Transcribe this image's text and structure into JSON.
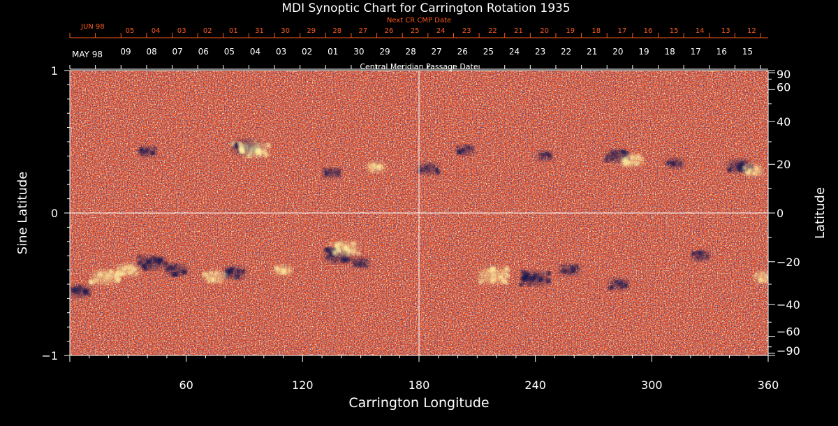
{
  "chart_data": {
    "type": "heatmap",
    "title": "MDI Synoptic Chart for Carrington Rotation 1935",
    "xlabel": "Carrington Longitude",
    "ylabel_left": "Sine Latitude",
    "ylabel_right": "Latitude",
    "xlim": [
      0,
      360
    ],
    "ylim": [
      -1,
      1
    ],
    "x_ticks": [
      "60",
      "120",
      "180",
      "240",
      "300",
      "360"
    ],
    "y_ticks_left": [
      "1",
      "0",
      "−1"
    ],
    "y_ticks_right": [
      "90",
      "60",
      "40",
      "20",
      "0",
      "−20",
      "−40",
      "−60",
      "−90"
    ],
    "center_lines": {
      "longitude": 180,
      "sine_latitude": 0
    },
    "top_axes": {
      "next_cr_label": "Next CR CMP Date",
      "next_cr_month": "JUN 98",
      "next_cr_days": [
        "05",
        "04",
        "03",
        "02",
        "01",
        "31",
        "30",
        "29",
        "28",
        "27",
        "26",
        "25",
        "24",
        "23",
        "22",
        "21",
        "20",
        "19",
        "18",
        "17",
        "16",
        "15",
        "14",
        "13",
        "12"
      ],
      "cmp_label": "Central Meridian Passage Date",
      "cmp_month": "MAY 98",
      "cmp_days": [
        "09",
        "08",
        "07",
        "06",
        "05",
        "04",
        "03",
        "02",
        "01",
        "30",
        "29",
        "28",
        "27",
        "26",
        "25",
        "24",
        "23",
        "22",
        "21",
        "20",
        "19",
        "18",
        "17",
        "16",
        "15"
      ]
    },
    "colors": {
      "background": "#ff4a10",
      "positive_field": "#fff0a0",
      "negative_field": "#141450",
      "axis": "#ffffff",
      "top_axis_accent": "#ff5a1e"
    },
    "active_regions": [
      {
        "lon": 91,
        "sinlat": 0.46,
        "polarity": "mixed",
        "strength": 1.0
      },
      {
        "lon": 95,
        "sinlat": 0.44,
        "polarity": "positive",
        "strength": 0.9
      },
      {
        "lon": 40,
        "sinlat": 0.43,
        "polarity": "negative",
        "strength": 0.5
      },
      {
        "lon": 135,
        "sinlat": 0.28,
        "polarity": "negative",
        "strength": 0.5
      },
      {
        "lon": 158,
        "sinlat": 0.32,
        "polarity": "positive",
        "strength": 0.5
      },
      {
        "lon": 185,
        "sinlat": 0.31,
        "polarity": "negative",
        "strength": 0.6
      },
      {
        "lon": 204,
        "sinlat": 0.44,
        "polarity": "negative",
        "strength": 0.5
      },
      {
        "lon": 245,
        "sinlat": 0.4,
        "polarity": "negative",
        "strength": 0.4
      },
      {
        "lon": 282,
        "sinlat": 0.4,
        "polarity": "negative",
        "strength": 0.7
      },
      {
        "lon": 290,
        "sinlat": 0.37,
        "polarity": "positive",
        "strength": 0.7
      },
      {
        "lon": 312,
        "sinlat": 0.35,
        "polarity": "negative",
        "strength": 0.5
      },
      {
        "lon": 345,
        "sinlat": 0.33,
        "polarity": "negative",
        "strength": 0.8
      },
      {
        "lon": 352,
        "sinlat": 0.3,
        "polarity": "positive",
        "strength": 0.6
      },
      {
        "lon": 138,
        "sinlat": -0.3,
        "polarity": "negative",
        "strength": 0.9
      },
      {
        "lon": 142,
        "sinlat": -0.25,
        "polarity": "positive",
        "strength": 0.9
      },
      {
        "lon": 18,
        "sinlat": -0.45,
        "polarity": "positive",
        "strength": 0.9
      },
      {
        "lon": 5,
        "sinlat": -0.55,
        "polarity": "negative",
        "strength": 0.7
      },
      {
        "lon": 30,
        "sinlat": -0.4,
        "polarity": "positive",
        "strength": 0.7
      },
      {
        "lon": 42,
        "sinlat": -0.35,
        "polarity": "negative",
        "strength": 0.9
      },
      {
        "lon": 55,
        "sinlat": -0.4,
        "polarity": "negative",
        "strength": 0.7
      },
      {
        "lon": 75,
        "sinlat": -0.45,
        "polarity": "positive",
        "strength": 0.7
      },
      {
        "lon": 85,
        "sinlat": -0.42,
        "polarity": "negative",
        "strength": 0.7
      },
      {
        "lon": 110,
        "sinlat": -0.4,
        "polarity": "positive",
        "strength": 0.5
      },
      {
        "lon": 150,
        "sinlat": -0.35,
        "polarity": "negative",
        "strength": 0.5
      },
      {
        "lon": 218,
        "sinlat": -0.44,
        "polarity": "positive",
        "strength": 1.0
      },
      {
        "lon": 240,
        "sinlat": -0.46,
        "polarity": "negative",
        "strength": 0.9
      },
      {
        "lon": 258,
        "sinlat": -0.4,
        "polarity": "negative",
        "strength": 0.6
      },
      {
        "lon": 283,
        "sinlat": -0.5,
        "polarity": "negative",
        "strength": 0.6
      },
      {
        "lon": 325,
        "sinlat": -0.3,
        "polarity": "negative",
        "strength": 0.5
      },
      {
        "lon": 358,
        "sinlat": -0.45,
        "polarity": "positive",
        "strength": 0.6
      }
    ]
  }
}
